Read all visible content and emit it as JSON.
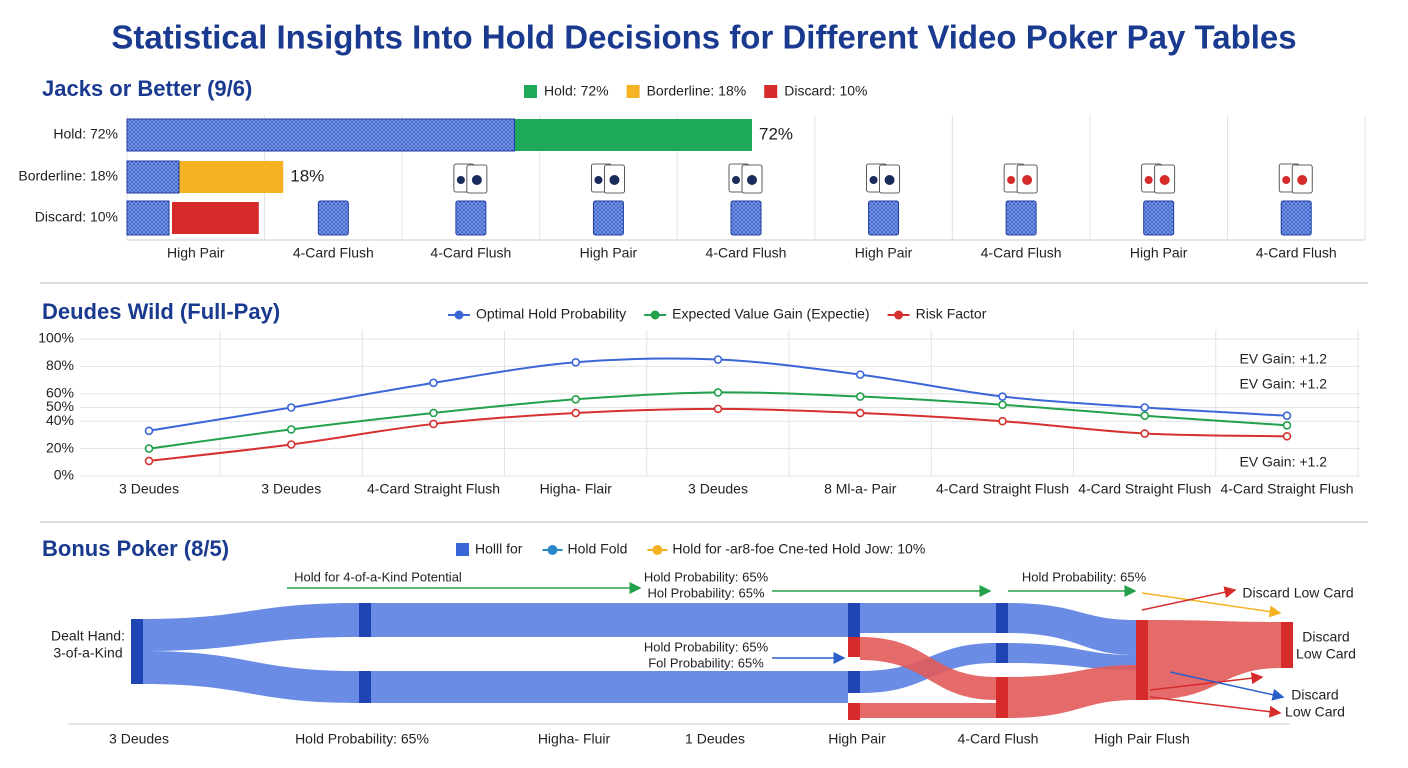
{
  "title": "Statistical Insights Into Hold Decisions for Different Video Poker Pay Tables",
  "chart_data": [
    {
      "type": "bar",
      "title": "Jacks or Better (9/6)",
      "categories": [
        "Hold: 72%",
        "Borderline: 18%",
        "Discard: 10%"
      ],
      "values": [
        72,
        18,
        10
      ],
      "value_labels": [
        "72%",
        "18%",
        null
      ],
      "colors": [
        "#1faa59",
        "#f5b324",
        "#d62b2b"
      ],
      "legend": [
        "Hold: 72%",
        "Borderline: 18%",
        "Discard: 10%"
      ],
      "columns": [
        "High Pair",
        "4-Card Flush",
        "4-Card Flush",
        "High Pair",
        "4-Card Flush",
        "High Pair",
        "4-Card Flush",
        "High Pair",
        "4-Card Flush"
      ],
      "grid": true
    },
    {
      "type": "line",
      "title": "Deudes Wild (Full-Pay)",
      "categories": [
        "3 Deudes",
        "3 Deudes",
        "4-Card Straight Flush",
        "Higha- Flair",
        "3 Deudes",
        "8 Ml-a- Pair",
        "4-Card Straight Flush",
        "4-Card Straight Flush",
        "4-Card Straight Flush"
      ],
      "series": [
        {
          "name": "Optimal Hold Probability",
          "color": "#3b66d8",
          "values": [
            33,
            50,
            68,
            83,
            85,
            74,
            58,
            50,
            44
          ]
        },
        {
          "name": "Expected Value Gain (Expectie)",
          "color": "#22a04a",
          "values": [
            20,
            34,
            46,
            56,
            61,
            58,
            52,
            44,
            37
          ]
        },
        {
          "name": "Risk Factor",
          "color": "#d63030",
          "values": [
            11,
            23,
            38,
            46,
            49,
            46,
            40,
            31,
            29
          ]
        }
      ],
      "ylim": [
        0,
        100
      ],
      "yticks": [
        {
          "value": 0,
          "label": "0%"
        },
        {
          "value": 20,
          "label": "20%"
        },
        {
          "value": 40,
          "label": "40%"
        },
        {
          "value": 50,
          "label": "50%"
        },
        {
          "value": 60,
          "label": "60%"
        },
        {
          "value": 80,
          "label": "80%"
        },
        {
          "value": 100,
          "label": "100%"
        }
      ],
      "grid": true,
      "annotations": [
        {
          "text": "EV Gain: +1.2",
          "color": "#22a04a"
        },
        {
          "text": "EV Gain: +1.2",
          "color": "#22a04a"
        },
        {
          "text": "EV Gain: +1.2",
          "color": "#d63030"
        }
      ]
    },
    {
      "type": "sankey",
      "title": "Bonus Poker (8/5)",
      "legend": [
        {
          "label": "Holll for",
          "color": "#3b66d8",
          "marker": "square"
        },
        {
          "label": "Hold Fold",
          "color": "#2b86c8",
          "marker": "dot"
        },
        {
          "label": "Hold for -ar8-foe Cne-ted Hold Jow: 10%",
          "color": "#f5b324",
          "marker": "dot"
        }
      ],
      "categories": [
        "3 Deudes",
        "Hold Probability: 65%",
        "Higha- Fluir",
        "1 Deudes",
        "High Pair",
        "4-Card Flush",
        "High Pair Flush"
      ],
      "nodes": [
        {
          "label": [
            "Dealt Hand:",
            "3-of-a-Kind"
          ]
        },
        {
          "label": [
            "Discard Low Card"
          ]
        },
        {
          "label": [
            "Discard",
            "Low Card"
          ]
        },
        {
          "label": [
            "Discard",
            "Low Card"
          ]
        }
      ],
      "annotations": [
        {
          "text": "Hold for 4-of-a-Kind Potential",
          "color": "#22a04a"
        },
        {
          "text": "Hold Probability: 65%",
          "color": "#1a2a5a"
        },
        {
          "text": "Hol Probability: 65%",
          "color": "#1a2a5a"
        },
        {
          "text": "Hold Probability: 65%",
          "color": "#1a2a5a"
        },
        {
          "text": "Hold Probability: 65%",
          "color": "#2a5fc8"
        },
        {
          "text": "Fol Probability: 65%",
          "color": "#2a5fc8"
        }
      ]
    }
  ]
}
